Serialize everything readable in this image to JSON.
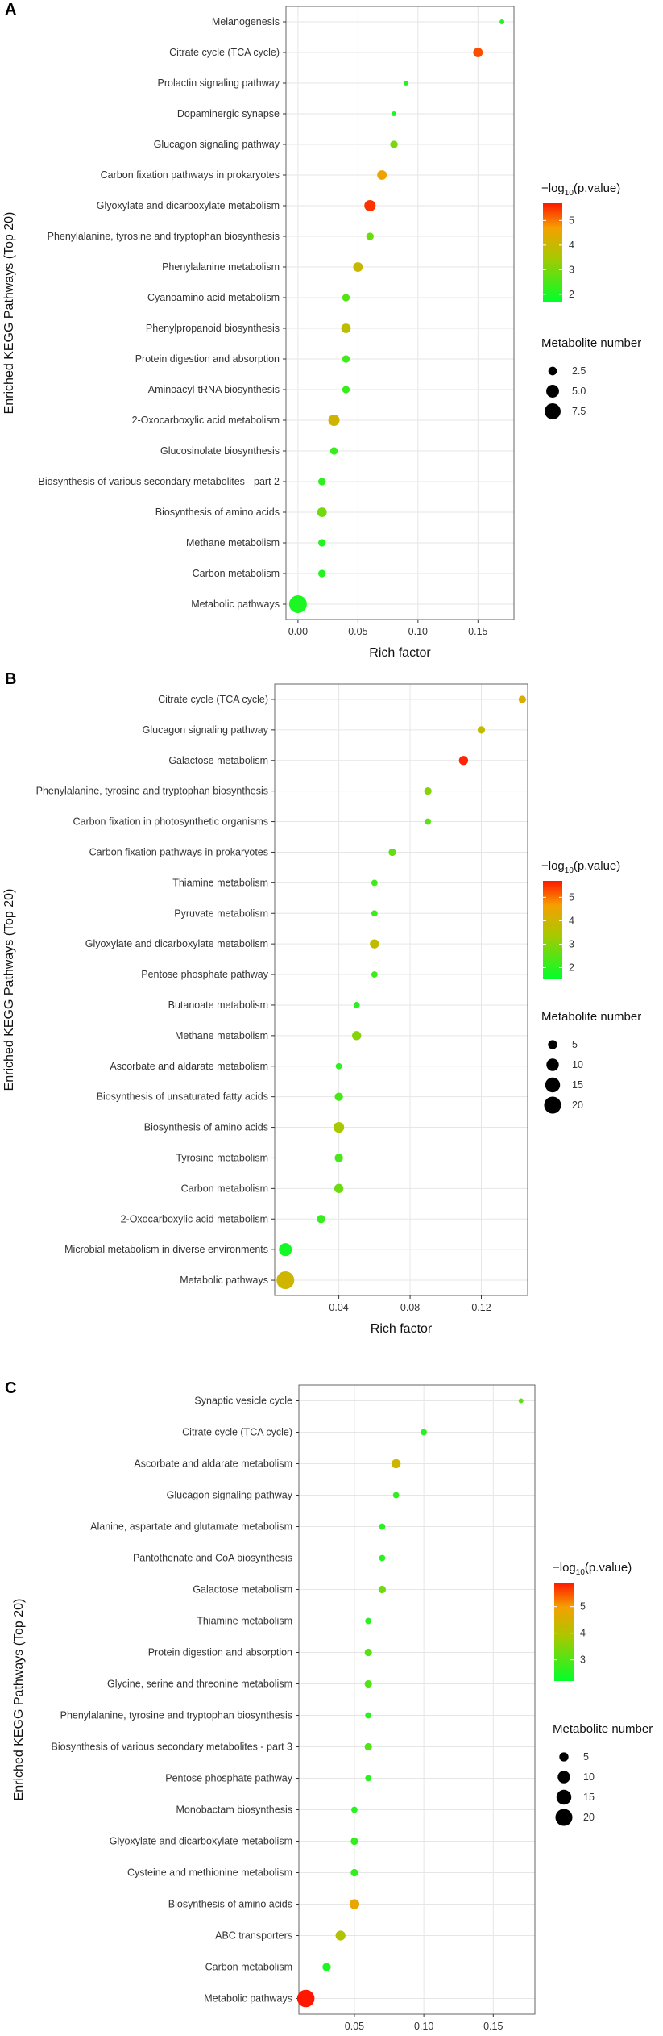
{
  "chart_data": [
    {
      "panel": "A",
      "type": "scatter",
      "ylabel": "Enriched KEGG Pathways (Top 20)",
      "xlabel": "Rich factor",
      "xlim": [
        -0.01,
        0.18
      ],
      "xticks": [
        0.0,
        0.05,
        0.1,
        0.15
      ],
      "xtick_labels": [
        "0.00",
        "0.05",
        "0.10",
        "0.15"
      ],
      "color_legend": {
        "title_parts": [
          "−log",
          "10",
          "(p.value)"
        ],
        "min": 1.7,
        "max": 5.7,
        "ticks": [
          2,
          3,
          4,
          5
        ]
      },
      "size_legend": {
        "title": "Metabolite number",
        "values": [
          2.5,
          5.0,
          7.5
        ],
        "labels": [
          "2.5",
          "5.0",
          "7.5"
        ],
        "min": 1,
        "max": 9
      },
      "points": [
        {
          "pathway": "Melanogenesis",
          "rich_factor": 0.17,
          "neg_log10_p": 2.1,
          "count": 1
        },
        {
          "pathway": "Citrate cycle (TCA cycle)",
          "rich_factor": 0.15,
          "neg_log10_p": 5.3,
          "count": 3
        },
        {
          "pathway": "Prolactin signaling pathway",
          "rich_factor": 0.09,
          "neg_log10_p": 2.1,
          "count": 1
        },
        {
          "pathway": "Dopaminergic synapse",
          "rich_factor": 0.08,
          "neg_log10_p": 2.0,
          "count": 1
        },
        {
          "pathway": "Glucagon signaling pathway",
          "rich_factor": 0.08,
          "neg_log10_p": 3.0,
          "count": 2
        },
        {
          "pathway": "Carbon fixation pathways in prokaryotes",
          "rich_factor": 0.07,
          "neg_log10_p": 4.6,
          "count": 3
        },
        {
          "pathway": "Glyoxylate and dicarboxylate metabolism",
          "rich_factor": 0.06,
          "neg_log10_p": 5.5,
          "count": 4
        },
        {
          "pathway": "Phenylalanine, tyrosine and tryptophan biosynthesis",
          "rich_factor": 0.06,
          "neg_log10_p": 2.8,
          "count": 2
        },
        {
          "pathway": "Phenylalanine metabolism",
          "rich_factor": 0.05,
          "neg_log10_p": 4.0,
          "count": 3
        },
        {
          "pathway": "Cyanoamino acid metabolism",
          "rich_factor": 0.04,
          "neg_log10_p": 2.6,
          "count": 2
        },
        {
          "pathway": "Phenylpropanoid biosynthesis",
          "rich_factor": 0.04,
          "neg_log10_p": 3.8,
          "count": 3
        },
        {
          "pathway": "Protein digestion and absorption",
          "rich_factor": 0.04,
          "neg_log10_p": 2.4,
          "count": 2
        },
        {
          "pathway": "Aminoacyl-tRNA biosynthesis",
          "rich_factor": 0.04,
          "neg_log10_p": 2.3,
          "count": 2
        },
        {
          "pathway": "2-Oxocarboxylic acid metabolism",
          "rich_factor": 0.03,
          "neg_log10_p": 4.1,
          "count": 4
        },
        {
          "pathway": "Glucosinolate biosynthesis",
          "rich_factor": 0.03,
          "neg_log10_p": 2.3,
          "count": 2
        },
        {
          "pathway": "Biosynthesis of various secondary metabolites - part 2",
          "rich_factor": 0.02,
          "neg_log10_p": 2.2,
          "count": 2
        },
        {
          "pathway": "Biosynthesis of amino acids",
          "rich_factor": 0.02,
          "neg_log10_p": 2.9,
          "count": 3
        },
        {
          "pathway": "Methane metabolism",
          "rich_factor": 0.02,
          "neg_log10_p": 2.1,
          "count": 2
        },
        {
          "pathway": "Carbon metabolism",
          "rich_factor": 0.02,
          "neg_log10_p": 2.1,
          "count": 2
        },
        {
          "pathway": "Metabolic pathways",
          "rich_factor": 0.0,
          "neg_log10_p": 2.0,
          "count": 9
        }
      ]
    },
    {
      "panel": "B",
      "type": "scatter",
      "ylabel": "Enriched KEGG Pathways (Top 20)",
      "xlabel": "Rich factor",
      "xlim": [
        0.004,
        0.146
      ],
      "xticks": [
        0.04,
        0.08,
        0.12
      ],
      "xtick_labels": [
        "0.04",
        "0.08",
        "0.12"
      ],
      "color_legend": {
        "title_parts": [
          "−log",
          "10",
          "(p.value)"
        ],
        "min": 1.5,
        "max": 5.7,
        "ticks": [
          2,
          3,
          4,
          5
        ]
      },
      "size_legend": {
        "title": "Metabolite number",
        "values": [
          5,
          10,
          15,
          20
        ],
        "labels": [
          "5",
          "10",
          "15",
          "20"
        ],
        "min": 1,
        "max": 22
      },
      "points": [
        {
          "pathway": "Citrate cycle (TCA cycle)",
          "rich_factor": 0.143,
          "neg_log10_p": 4.2,
          "count": 3
        },
        {
          "pathway": "Glucagon signaling pathway",
          "rich_factor": 0.12,
          "neg_log10_p": 3.8,
          "count": 3
        },
        {
          "pathway": "Galactose metabolism",
          "rich_factor": 0.11,
          "neg_log10_p": 5.6,
          "count": 5
        },
        {
          "pathway": "Phenylalanine, tyrosine and tryptophan biosynthesis",
          "rich_factor": 0.09,
          "neg_log10_p": 3.0,
          "count": 3
        },
        {
          "pathway": "Carbon fixation in photosynthetic organisms",
          "rich_factor": 0.09,
          "neg_log10_p": 2.5,
          "count": 2
        },
        {
          "pathway": "Carbon fixation pathways in prokaryotes",
          "rich_factor": 0.07,
          "neg_log10_p": 2.6,
          "count": 3
        },
        {
          "pathway": "Thiamine metabolism",
          "rich_factor": 0.06,
          "neg_log10_p": 2.2,
          "count": 2
        },
        {
          "pathway": "Pyruvate metabolism",
          "rich_factor": 0.06,
          "neg_log10_p": 2.2,
          "count": 2
        },
        {
          "pathway": "Glyoxylate and dicarboxylate metabolism",
          "rich_factor": 0.06,
          "neg_log10_p": 3.8,
          "count": 5
        },
        {
          "pathway": "Pentose phosphate pathway",
          "rich_factor": 0.06,
          "neg_log10_p": 2.2,
          "count": 2
        },
        {
          "pathway": "Butanoate metabolism",
          "rich_factor": 0.05,
          "neg_log10_p": 2.0,
          "count": 2
        },
        {
          "pathway": "Methane metabolism",
          "rich_factor": 0.05,
          "neg_log10_p": 3.0,
          "count": 5
        },
        {
          "pathway": "Ascorbate and aldarate metabolism",
          "rich_factor": 0.04,
          "neg_log10_p": 2.0,
          "count": 2
        },
        {
          "pathway": "Biosynthesis of unsaturated fatty acids",
          "rich_factor": 0.04,
          "neg_log10_p": 2.3,
          "count": 4
        },
        {
          "pathway": "Biosynthesis of amino acids",
          "rich_factor": 0.04,
          "neg_log10_p": 3.4,
          "count": 7
        },
        {
          "pathway": "Tyrosine metabolism",
          "rich_factor": 0.04,
          "neg_log10_p": 2.3,
          "count": 4
        },
        {
          "pathway": "Carbon metabolism",
          "rich_factor": 0.04,
          "neg_log10_p": 2.7,
          "count": 5
        },
        {
          "pathway": "2-Oxocarboxylic acid metabolism",
          "rich_factor": 0.03,
          "neg_log10_p": 2.1,
          "count": 4
        },
        {
          "pathway": "Microbial metabolism in diverse environments",
          "rich_factor": 0.01,
          "neg_log10_p": 1.7,
          "count": 11
        },
        {
          "pathway": "Metabolic pathways",
          "rich_factor": 0.01,
          "neg_log10_p": 4.0,
          "count": 22
        }
      ]
    },
    {
      "panel": "C",
      "type": "scatter",
      "ylabel": "Enriched KEGG Pathways (Top 20)",
      "xlabel": "Rich factor",
      "xlim": [
        0.01,
        0.18
      ],
      "xticks": [
        0.05,
        0.1,
        0.15
      ],
      "xtick_labels": [
        "0.05",
        "0.10",
        "0.15"
      ],
      "color_legend": {
        "title_parts": [
          "−log",
          "10",
          "(p.value)"
        ],
        "min": 2.2,
        "max": 5.9,
        "ticks": [
          3,
          4,
          5
        ]
      },
      "size_legend": {
        "title": "Metabolite number",
        "values": [
          5,
          10,
          15,
          20
        ],
        "labels": [
          "5",
          "10",
          "15",
          "20"
        ],
        "min": 1,
        "max": 22
      },
      "points": [
        {
          "pathway": "Synaptic vesicle cycle",
          "rich_factor": 0.17,
          "neg_log10_p": 3.2,
          "count": 1
        },
        {
          "pathway": "Citrate cycle (TCA cycle)",
          "rich_factor": 0.1,
          "neg_log10_p": 2.6,
          "count": 2
        },
        {
          "pathway": "Ascorbate and aldarate metabolism",
          "rich_factor": 0.08,
          "neg_log10_p": 4.4,
          "count": 5
        },
        {
          "pathway": "Glucagon signaling pathway",
          "rich_factor": 0.08,
          "neg_log10_p": 2.7,
          "count": 2
        },
        {
          "pathway": "Alanine, aspartate and glutamate metabolism",
          "rich_factor": 0.07,
          "neg_log10_p": 2.6,
          "count": 2
        },
        {
          "pathway": "Pantothenate and CoA biosynthesis",
          "rich_factor": 0.07,
          "neg_log10_p": 2.6,
          "count": 2
        },
        {
          "pathway": "Galactose metabolism",
          "rich_factor": 0.07,
          "neg_log10_p": 3.3,
          "count": 3
        },
        {
          "pathway": "Thiamine metabolism",
          "rich_factor": 0.06,
          "neg_log10_p": 2.6,
          "count": 2
        },
        {
          "pathway": "Protein digestion and absorption",
          "rich_factor": 0.06,
          "neg_log10_p": 3.1,
          "count": 3
        },
        {
          "pathway": "Glycine, serine and threonine metabolism",
          "rich_factor": 0.06,
          "neg_log10_p": 3.0,
          "count": 3
        },
        {
          "pathway": "Phenylalanine, tyrosine and tryptophan biosynthesis",
          "rich_factor": 0.06,
          "neg_log10_p": 2.6,
          "count": 2
        },
        {
          "pathway": "Biosynthesis of various secondary metabolites - part 3",
          "rich_factor": 0.06,
          "neg_log10_p": 3.0,
          "count": 3
        },
        {
          "pathway": "Pentose phosphate pathway",
          "rich_factor": 0.06,
          "neg_log10_p": 2.6,
          "count": 2
        },
        {
          "pathway": "Monobactam biosynthesis",
          "rich_factor": 0.05,
          "neg_log10_p": 2.6,
          "count": 2
        },
        {
          "pathway": "Glyoxylate and dicarboxylate metabolism",
          "rich_factor": 0.05,
          "neg_log10_p": 2.7,
          "count": 3
        },
        {
          "pathway": "Cysteine and methionine metabolism",
          "rich_factor": 0.05,
          "neg_log10_p": 2.7,
          "count": 3
        },
        {
          "pathway": "Biosynthesis of amino acids",
          "rich_factor": 0.05,
          "neg_log10_p": 4.8,
          "count": 6
        },
        {
          "pathway": "ABC transporters",
          "rich_factor": 0.04,
          "neg_log10_p": 4.0,
          "count": 6
        },
        {
          "pathway": "Carbon metabolism",
          "rich_factor": 0.03,
          "neg_log10_p": 2.5,
          "count": 4
        },
        {
          "pathway": "Metabolic pathways",
          "rich_factor": 0.015,
          "neg_log10_p": 5.9,
          "count": 21
        }
      ]
    }
  ]
}
